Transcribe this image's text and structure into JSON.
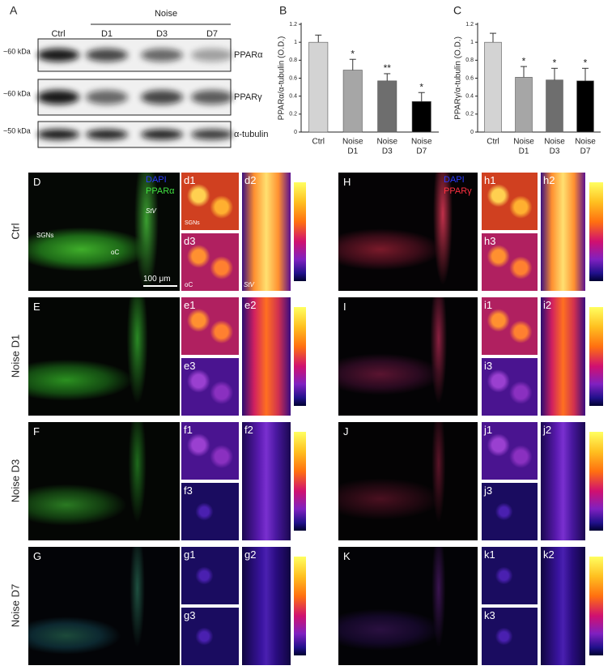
{
  "panel_a": {
    "label": "A",
    "noise": "Noise",
    "lanes": [
      "Ctrl",
      "D1",
      "D3",
      "D7"
    ],
    "blots": [
      {
        "size": "~60 kDa",
        "protein": "PPARα"
      },
      {
        "size": "~60 kDa",
        "protein": "PPARγ"
      },
      {
        "size": "~50 kDa",
        "protein": "α-tubulin"
      }
    ]
  },
  "chart_data": [
    {
      "type": "bar",
      "label": "B",
      "y_label": "PPARα/α-tubulin (O.D.)",
      "categories": [
        [
          "Ctrl"
        ],
        [
          "Noise",
          "D1"
        ],
        [
          "Noise",
          "D3"
        ],
        [
          "Noise",
          "D7"
        ]
      ],
      "values": [
        1.0,
        0.69,
        0.57,
        0.34
      ],
      "errors": [
        0.08,
        0.12,
        0.08,
        0.1
      ],
      "significance": [
        null,
        "*",
        "**",
        "*"
      ],
      "colors": [
        "#d3d3d3",
        "#a6a6a6",
        "#6e6e6e",
        "#000000"
      ],
      "ylim": [
        0,
        1.2
      ],
      "yticks": [
        0,
        0.2,
        0.4,
        0.6,
        0.8,
        1,
        1.2
      ]
    },
    {
      "type": "bar",
      "label": "C",
      "y_label": "PPARγ/α-tubulin (O.D.)",
      "categories": [
        [
          "Ctrl"
        ],
        [
          "Noise",
          "D1"
        ],
        [
          "Noise",
          "D3"
        ],
        [
          "Noise",
          "D7"
        ]
      ],
      "values": [
        1.0,
        0.61,
        0.58,
        0.57
      ],
      "errors": [
        0.1,
        0.12,
        0.13,
        0.14
      ],
      "significance": [
        null,
        "*",
        "*",
        "*"
      ],
      "colors": [
        "#d3d3d3",
        "#a6a6a6",
        "#6e6e6e",
        "#000000"
      ],
      "ylim": [
        0,
        1.2
      ],
      "yticks": [
        0,
        0.2,
        0.4,
        0.6,
        0.8,
        1,
        1.2
      ]
    }
  ],
  "conditions": [
    "Ctrl",
    "Noise D1",
    "Noise D3",
    "Noise D7"
  ],
  "images": [
    {
      "channels": [
        "DAPI",
        "PPARα"
      ],
      "rows": [
        {
          "label": "D",
          "subs": [
            "d1",
            "d2",
            "d3"
          ]
        },
        {
          "label": "E",
          "subs": [
            "e1",
            "e2",
            "e3"
          ]
        },
        {
          "label": "F",
          "subs": [
            "f1",
            "f2",
            "f3"
          ]
        },
        {
          "label": "G",
          "subs": [
            "g1",
            "g2",
            "g3"
          ]
        }
      ]
    },
    {
      "channels": [
        "DAPI",
        "PPARγ"
      ],
      "rows": [
        {
          "label": "H",
          "subs": [
            "h1",
            "h2",
            "h3"
          ]
        },
        {
          "label": "I",
          "subs": [
            "i1",
            "i2",
            "i3"
          ]
        },
        {
          "label": "J",
          "subs": [
            "j1",
            "j2",
            "j3"
          ]
        },
        {
          "label": "K",
          "subs": [
            "k1",
            "k2",
            "k3"
          ]
        }
      ]
    }
  ],
  "annotations": {
    "sgns": "SGNs",
    "oc": "oC",
    "stv": "StV",
    "scale": "100 μm"
  }
}
